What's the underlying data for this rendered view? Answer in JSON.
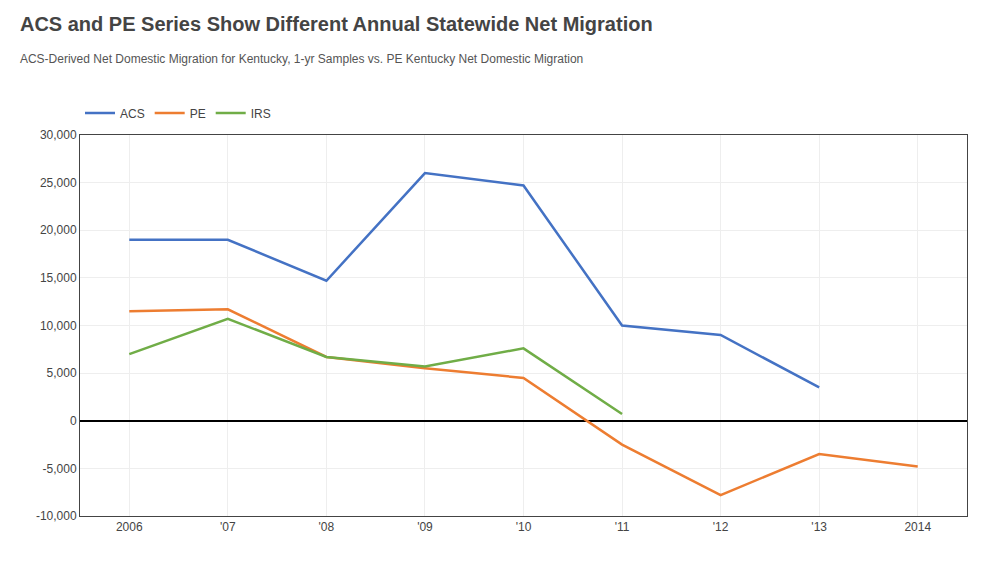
{
  "chart_data": {
    "type": "line",
    "title": "ACS and PE Series Show Different Annual Statewide Net Migration",
    "subtitle": "ACS-Derived Net Domestic Migration for Kentucky, 1-yr Samples vs. PE Kentucky Net Domestic Migration",
    "x": [
      2006,
      2007,
      2008,
      2009,
      2010,
      2011,
      2012,
      2013,
      2014
    ],
    "series": [
      {
        "name": "ACS",
        "color": "#4472C4",
        "values": [
          19000,
          19000,
          14700,
          26000,
          24700,
          10000,
          9000,
          3500,
          null
        ]
      },
      {
        "name": "PE",
        "color": "#ED7D31",
        "values": [
          11500,
          11700,
          6700,
          5500,
          4500,
          -2500,
          -7800,
          -3500,
          -4800
        ]
      },
      {
        "name": "IRS",
        "color": "#70AD47",
        "values": [
          7000,
          10700,
          6700,
          5700,
          7600,
          700,
          null,
          null,
          null
        ]
      }
    ],
    "xlim": [
      2005.5,
      2014.5
    ],
    "xticks": [
      2006,
      {
        "value": 2007,
        "label": "'07"
      },
      {
        "value": 2008,
        "label": "'08"
      },
      {
        "value": 2009,
        "label": "'09"
      },
      {
        "value": 2010,
        "label": "'10"
      },
      {
        "value": 2011,
        "label": "'11"
      },
      {
        "value": 2012,
        "label": "'12"
      },
      {
        "value": 2013,
        "label": "'13"
      },
      2014
    ],
    "ylim": [
      -10000,
      30000
    ],
    "yticks": [
      {
        "value": -10000,
        "label": "-10,000"
      },
      {
        "value": -5000,
        "label": "-5,000"
      },
      0,
      {
        "value": 5000,
        "label": "5,000"
      },
      {
        "value": 10000,
        "label": "10,000"
      },
      {
        "value": 15000,
        "label": "15,000"
      },
      {
        "value": 20000,
        "label": "20,000"
      },
      {
        "value": 25000,
        "label": "25,000"
      },
      {
        "value": 30000,
        "label": "30,000"
      }
    ],
    "grid": true
  }
}
